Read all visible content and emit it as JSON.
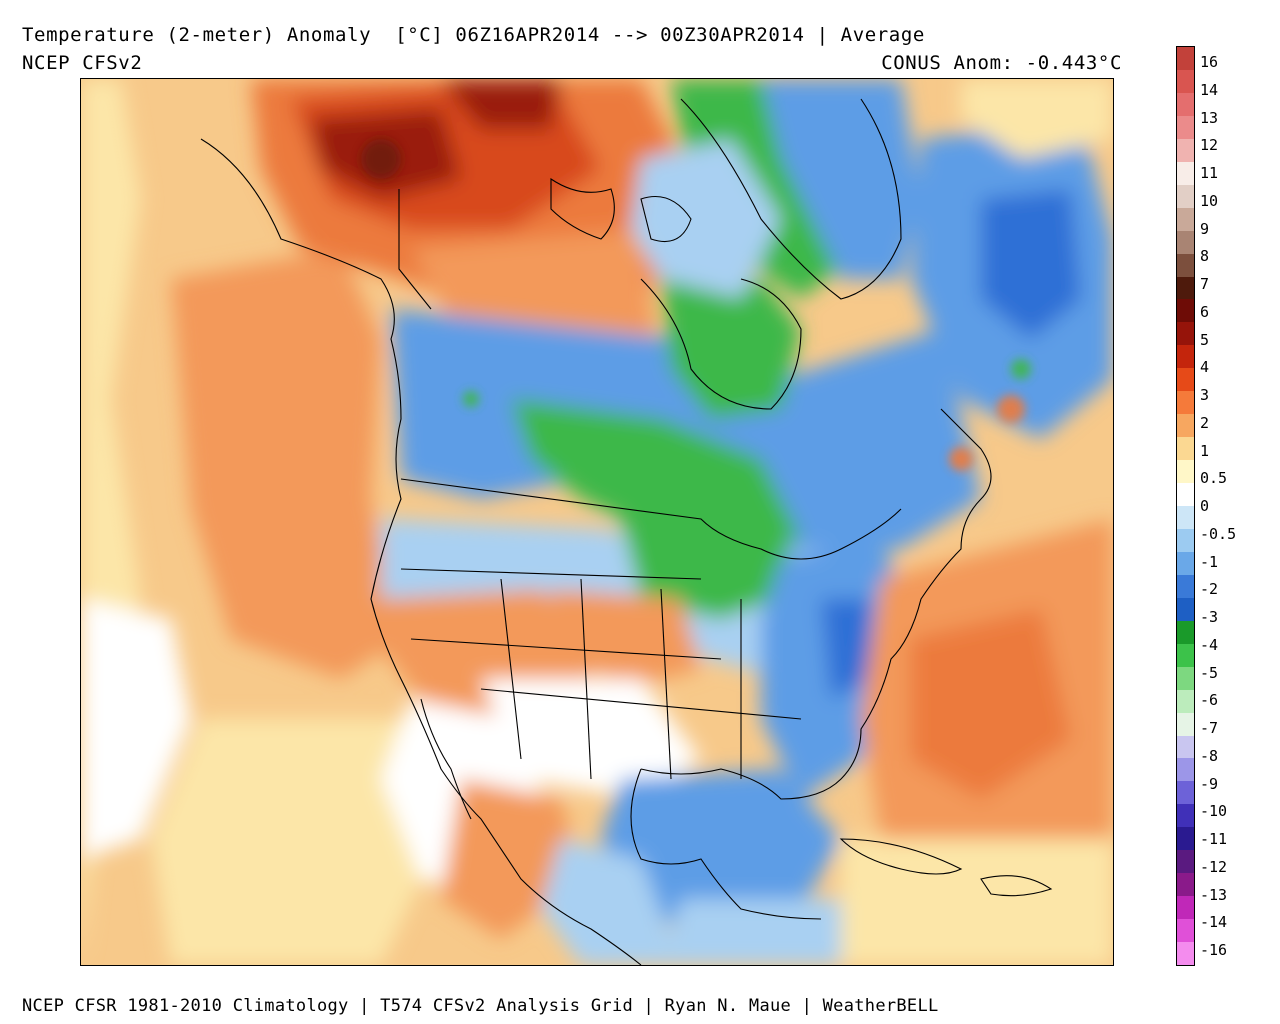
{
  "header": {
    "title": "Temperature (2-meter) Anomaly  [°C] 06Z16APR2014 --> 00Z30APR2014 | Average",
    "subtitle": "NCEP CFSv2",
    "conus_anomaly": "CONUS Anom: -0.443°C"
  },
  "footer": {
    "credits": "NCEP CFSR 1981-2010 Climatology | T574 CFSv2 Analysis Grid | Ryan N. Maue | WeatherBELL"
  },
  "colorbar": {
    "labels": [
      "16",
      "14",
      "13",
      "12",
      "11",
      "10",
      "9",
      "8",
      "7",
      "6",
      "5",
      "4",
      "3",
      "2",
      "1",
      "0.5",
      "0",
      "-0.5",
      "-1",
      "-2",
      "-3",
      "-4",
      "-5",
      "-6",
      "-7",
      "-8",
      "-9",
      "-10",
      "-11",
      "-12",
      "-13",
      "-14",
      "-16"
    ],
    "colors": [
      "#c2413a",
      "#d95550",
      "#e46e6e",
      "#eb8b8b",
      "#f0b3b0",
      "#f5dcdc",
      "#d3b5a8",
      "#b89484",
      "#8c5a46",
      "#5a1e10",
      "#7a0e06",
      "#a81a0a",
      "#d43a12",
      "#ee6a2a",
      "#f4934c",
      "#f9c77a",
      "#fdf0b4",
      "#ffffff",
      "#c8e2f5",
      "#8fc2ee",
      "#4f93e0",
      "#2a63c8",
      "#1a9a2a",
      "#33c23e",
      "#7fdc80",
      "#c0eec0",
      "#e8f4e8",
      "#c9c6f0",
      "#9c96e8",
      "#6d62d8",
      "#4030b8",
      "#5a1a80",
      "#9a1a9a",
      "#d830c8",
      "#f070e8"
    ],
    "segments": [
      {
        "color": "#c2413a"
      },
      {
        "color": "#d95550"
      },
      {
        "color": "#e46e6e"
      },
      {
        "color": "#eb8b8b"
      },
      {
        "color": "#f0b3b0"
      },
      {
        "color": "#f8ede8"
      },
      {
        "color": "#e2cfc6"
      },
      {
        "color": "#c9a999"
      },
      {
        "color": "#a98473"
      },
      {
        "color": "#7c4f3d"
      },
      {
        "color": "#4e1a0c"
      },
      {
        "color": "#6e0c06"
      },
      {
        "color": "#96140a"
      },
      {
        "color": "#c4250c"
      },
      {
        "color": "#e64a18"
      },
      {
        "color": "#f57a3a"
      },
      {
        "color": "#f7a760"
      },
      {
        "color": "#fbd892"
      },
      {
        "color": "#fff7c8"
      },
      {
        "color": "#ffffff"
      },
      {
        "color": "#cde6f7"
      },
      {
        "color": "#9ccbf1"
      },
      {
        "color": "#6aa8e8"
      },
      {
        "color": "#3a7ad8"
      },
      {
        "color": "#1e5fc4"
      },
      {
        "color": "#1a9a2a"
      },
      {
        "color": "#3cc24a"
      },
      {
        "color": "#7dd880"
      },
      {
        "color": "#bcecbc"
      },
      {
        "color": "#e6f4e6"
      },
      {
        "color": "#c9c6f0"
      },
      {
        "color": "#9c96e8"
      },
      {
        "color": "#6d62d8"
      },
      {
        "color": "#4030b8"
      },
      {
        "color": "#2a1a90"
      },
      {
        "color": "#5a1a80"
      },
      {
        "color": "#8a1a8a"
      },
      {
        "color": "#c028b8"
      },
      {
        "color": "#e050d8"
      },
      {
        "color": "#f48cee"
      }
    ]
  },
  "map": {
    "colors": {
      "ocean_warm": "#f7c98a",
      "pale_yellow": "#fce6a8",
      "orange": "#f3995a",
      "orange_deep": "#ec7a3e",
      "red": "#d84a1e",
      "dark_red": "#9a1e0a",
      "brown": "#6e1a0c",
      "light_blue": "#a9d0f2",
      "blue": "#5d9de6",
      "deep_blue": "#2f6fd6",
      "green": "#3cb848",
      "light_green": "#79d47c",
      "white": "#ffffff",
      "lines": "#000000"
    }
  }
}
